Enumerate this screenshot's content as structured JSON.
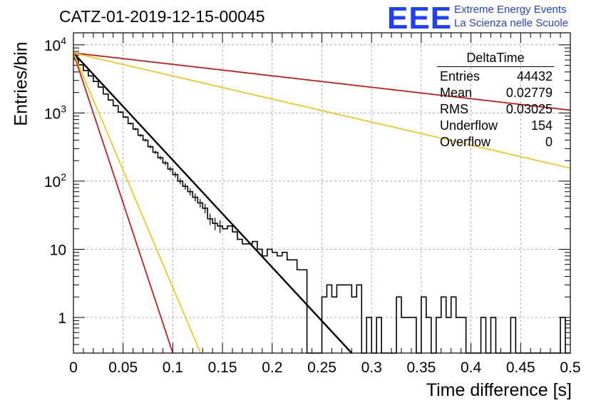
{
  "title": "CATZ-01-2019-12-15-00045",
  "logo": {
    "letters": "EEE",
    "line1": "Extreme Energy Events",
    "line2": "La Scienza nelle Scuole",
    "color": "#1f3fff"
  },
  "stats": {
    "name": "DeltaTime",
    "rows": [
      {
        "label": "Entries",
        "value": "44432"
      },
      {
        "label": "Mean",
        "value": "0.02779"
      },
      {
        "label": "RMS",
        "value": "0.03025"
      },
      {
        "label": "Underflow",
        "value": "154"
      },
      {
        "label": "Overflow",
        "value": "0"
      }
    ]
  },
  "chart_data": {
    "type": "line",
    "xlabel": "Time difference [s]",
    "ylabel": "Entries/bin",
    "xlim": [
      0,
      0.5
    ],
    "ylim": [
      0.3,
      15000
    ],
    "yscale": "log",
    "grid": true,
    "x_ticks": [
      "0",
      "0.05",
      "0.1",
      "0.15",
      "0.2",
      "0.25",
      "0.3",
      "0.35",
      "0.4",
      "0.45",
      "0.5"
    ],
    "y_ticks": [
      {
        "value": 1,
        "label": "1"
      },
      {
        "value": 10,
        "label": "10"
      },
      {
        "value": 100,
        "label": "10^2"
      },
      {
        "value": 1000,
        "label": "10^3"
      },
      {
        "value": 10000,
        "label": "10^4"
      }
    ],
    "histogram": {
      "bin_width": 0.005,
      "counts": [
        6300,
        5100,
        4200,
        3500,
        2900,
        2400,
        1900,
        1550,
        1280,
        1030,
        870,
        700,
        580,
        470,
        400,
        320,
        265,
        220,
        185,
        150,
        125,
        100,
        84,
        70,
        58,
        48,
        40,
        28,
        24,
        22,
        20,
        22,
        18,
        14,
        12,
        12,
        13,
        10,
        8,
        10,
        9,
        8,
        9,
        7,
        7,
        5,
        5,
        0.1,
        0.1,
        0.1,
        2,
        3,
        2,
        3,
        3,
        3,
        2,
        3,
        0.1,
        1,
        0.1,
        1,
        0.1,
        0.1,
        0.1,
        2,
        1,
        1,
        1,
        0.1,
        2,
        1,
        0.1,
        1,
        2,
        1,
        2,
        1,
        1,
        0.1,
        0.1,
        0.1,
        1,
        0.1,
        1,
        0.1,
        0.1,
        0.1,
        1,
        0.1,
        0.1,
        0.1,
        0.1,
        0.1,
        0.1,
        0.1,
        0.1,
        0.1,
        1,
        0.1
      ],
      "color": "#000000"
    },
    "fit_lines": [
      {
        "points": [
          [
            0,
            7600
          ],
          [
            0.28,
            0.3
          ]
        ],
        "color": "#000000",
        "width": 2.4
      },
      {
        "points": [
          [
            0,
            7600
          ],
          [
            0.1,
            0.3
          ]
        ],
        "color": "#dd0000",
        "width": 1.6
      },
      {
        "points": [
          [
            0,
            7600
          ],
          [
            0.128,
            0.3
          ]
        ],
        "color": "#f5c400",
        "width": 1.6
      },
      {
        "points": [
          [
            0,
            7600
          ],
          [
            0.5,
            1100
          ]
        ],
        "color": "#dd0000",
        "width": 1.6
      },
      {
        "points": [
          [
            0,
            7600
          ],
          [
            0.5,
            155
          ]
        ],
        "color": "#f5c400",
        "width": 1.6
      }
    ]
  }
}
